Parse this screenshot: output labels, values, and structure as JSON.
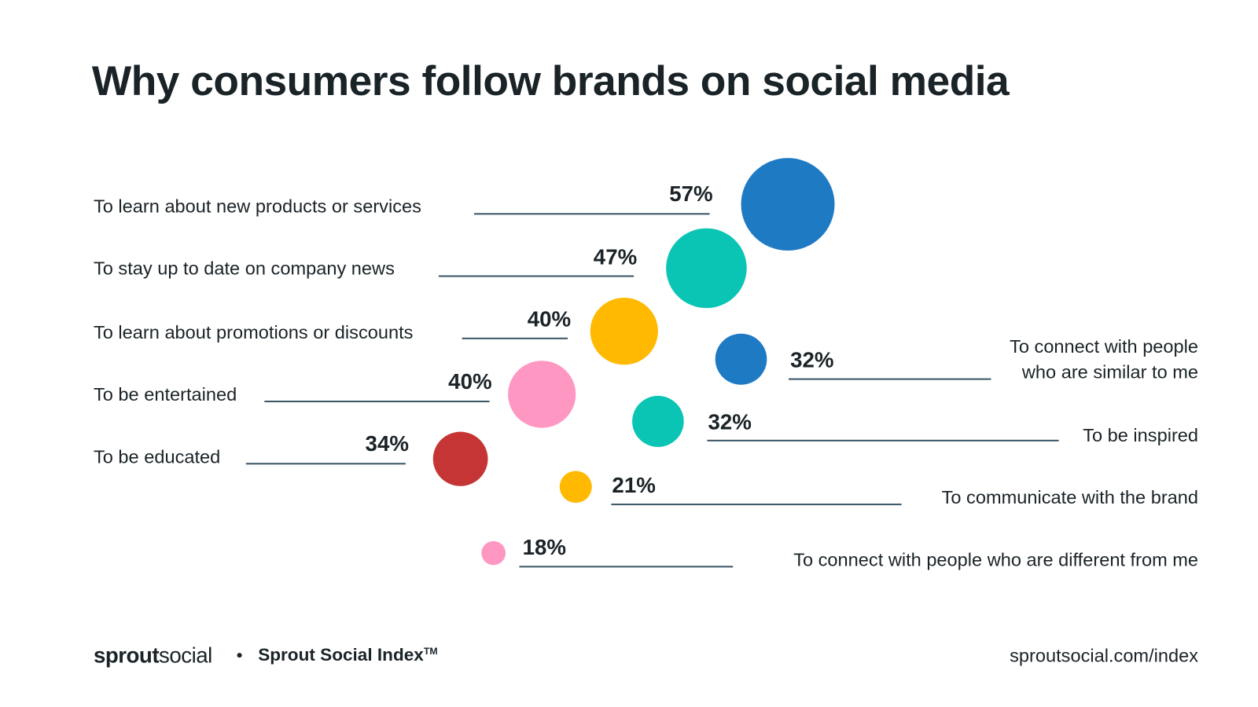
{
  "chart_data": {
    "type": "bubble",
    "title": "Why consumers follow brands on social media",
    "items": [
      {
        "label": "To learn about new products or services",
        "value": 57,
        "value_label": "57%",
        "color": "#1F7AC4",
        "side": "left"
      },
      {
        "label": "To stay up to date on company news",
        "value": 47,
        "value_label": "47%",
        "color": "#0BC5B4",
        "side": "left"
      },
      {
        "label": "To learn about promotions or discounts",
        "value": 40,
        "value_label": "40%",
        "color": "#FFB900",
        "side": "left"
      },
      {
        "label": "To be entertained",
        "value": 40,
        "value_label": "40%",
        "color": "#FF97C3",
        "side": "left"
      },
      {
        "label": "To be educated",
        "value": 34,
        "value_label": "34%",
        "color": "#C63535",
        "side": "left"
      },
      {
        "label": "To connect with people who are similar to me",
        "label_lines": [
          "To connect with people",
          "who are similar to me"
        ],
        "value": 32,
        "value_label": "32%",
        "color": "#1F7AC4",
        "side": "right"
      },
      {
        "label": "To be inspired",
        "value": 32,
        "value_label": "32%",
        "color": "#0BC5B4",
        "side": "right"
      },
      {
        "label": "To communicate with the brand",
        "value": 21,
        "value_label": "21%",
        "color": "#FFB900",
        "side": "right"
      },
      {
        "label": "To connect with people who are different from me",
        "value": 18,
        "value_label": "18%",
        "color": "#FF97C3",
        "side": "right"
      }
    ]
  },
  "footer": {
    "logo_bold": "sprout",
    "logo_light": "social",
    "index_label": "Sprout Social Index",
    "trademark": "TM",
    "url": "sproutsocial.com/index"
  }
}
